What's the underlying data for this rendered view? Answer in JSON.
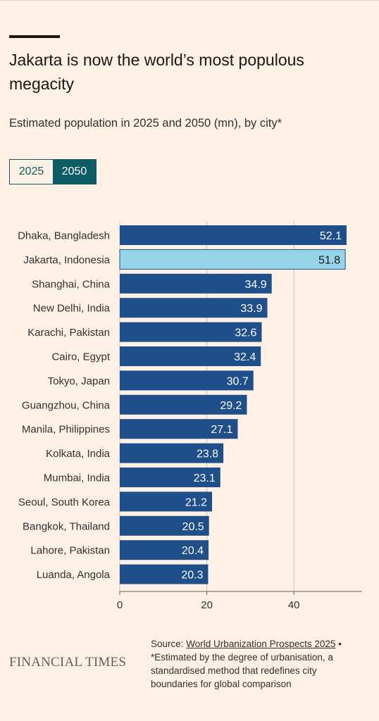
{
  "title": "Jakarta is now the world’s most populous megacity",
  "subtitle": "Estimated population in 2025 and 2050 (mn), by city*",
  "toggle": {
    "option_2025": "2025",
    "option_2050": "2050",
    "selected": "2050"
  },
  "colors": {
    "bar": "#1f4f8b",
    "highlight": "#96d4ea",
    "background": "#fff1e5",
    "toggle": "#0d5c63"
  },
  "chart_data": {
    "type": "bar",
    "orientation": "horizontal",
    "title": "Jakarta is now the world’s most populous megacity",
    "subtitle": "Estimated population in 2025 and 2050 (mn), by city*",
    "categories": [
      "Dhaka, Bangladesh",
      "Jakarta, Indonesia",
      "Shanghai, China",
      "New Delhi, India",
      "Karachi, Pakistan",
      "Cairo, Egypt",
      "Tokyo, Japan",
      "Guangzhou, China",
      "Manila, Philippines",
      "Kolkata, India",
      "Mumbai, India",
      "Seoul, South Korea",
      "Bangkok, Thailand",
      "Lahore, Pakistan",
      "Luanda, Angola"
    ],
    "values": [
      52.1,
      51.8,
      34.9,
      33.9,
      32.6,
      32.4,
      30.7,
      29.2,
      27.1,
      23.8,
      23.1,
      21.2,
      20.5,
      20.4,
      20.3
    ],
    "value_labels": [
      "52.1",
      "51.8",
      "34.9",
      "33.9",
      "32.6",
      "32.4",
      "30.7",
      "29.2",
      "27.1",
      "23.8",
      "23.1",
      "21.2",
      "20.5",
      "20.4",
      "20.3"
    ],
    "highlight": "Jakarta, Indonesia",
    "xlim": [
      0,
      55
    ],
    "xticks": [
      0,
      20,
      40
    ],
    "xtick_labels": [
      "0",
      "20",
      "40"
    ],
    "xlabel": "",
    "ylabel": "",
    "grid": "vertical gridlines"
  },
  "footer": {
    "logo": "FINANCIAL TIMES",
    "source_prefix": "Source: ",
    "source_link": "World Urbanization Prospects 2025",
    "source_suffix": " •",
    "note": "*Estimated by the degree of urbanisation, a standardised method that redefines city boundaries for global comparison"
  }
}
